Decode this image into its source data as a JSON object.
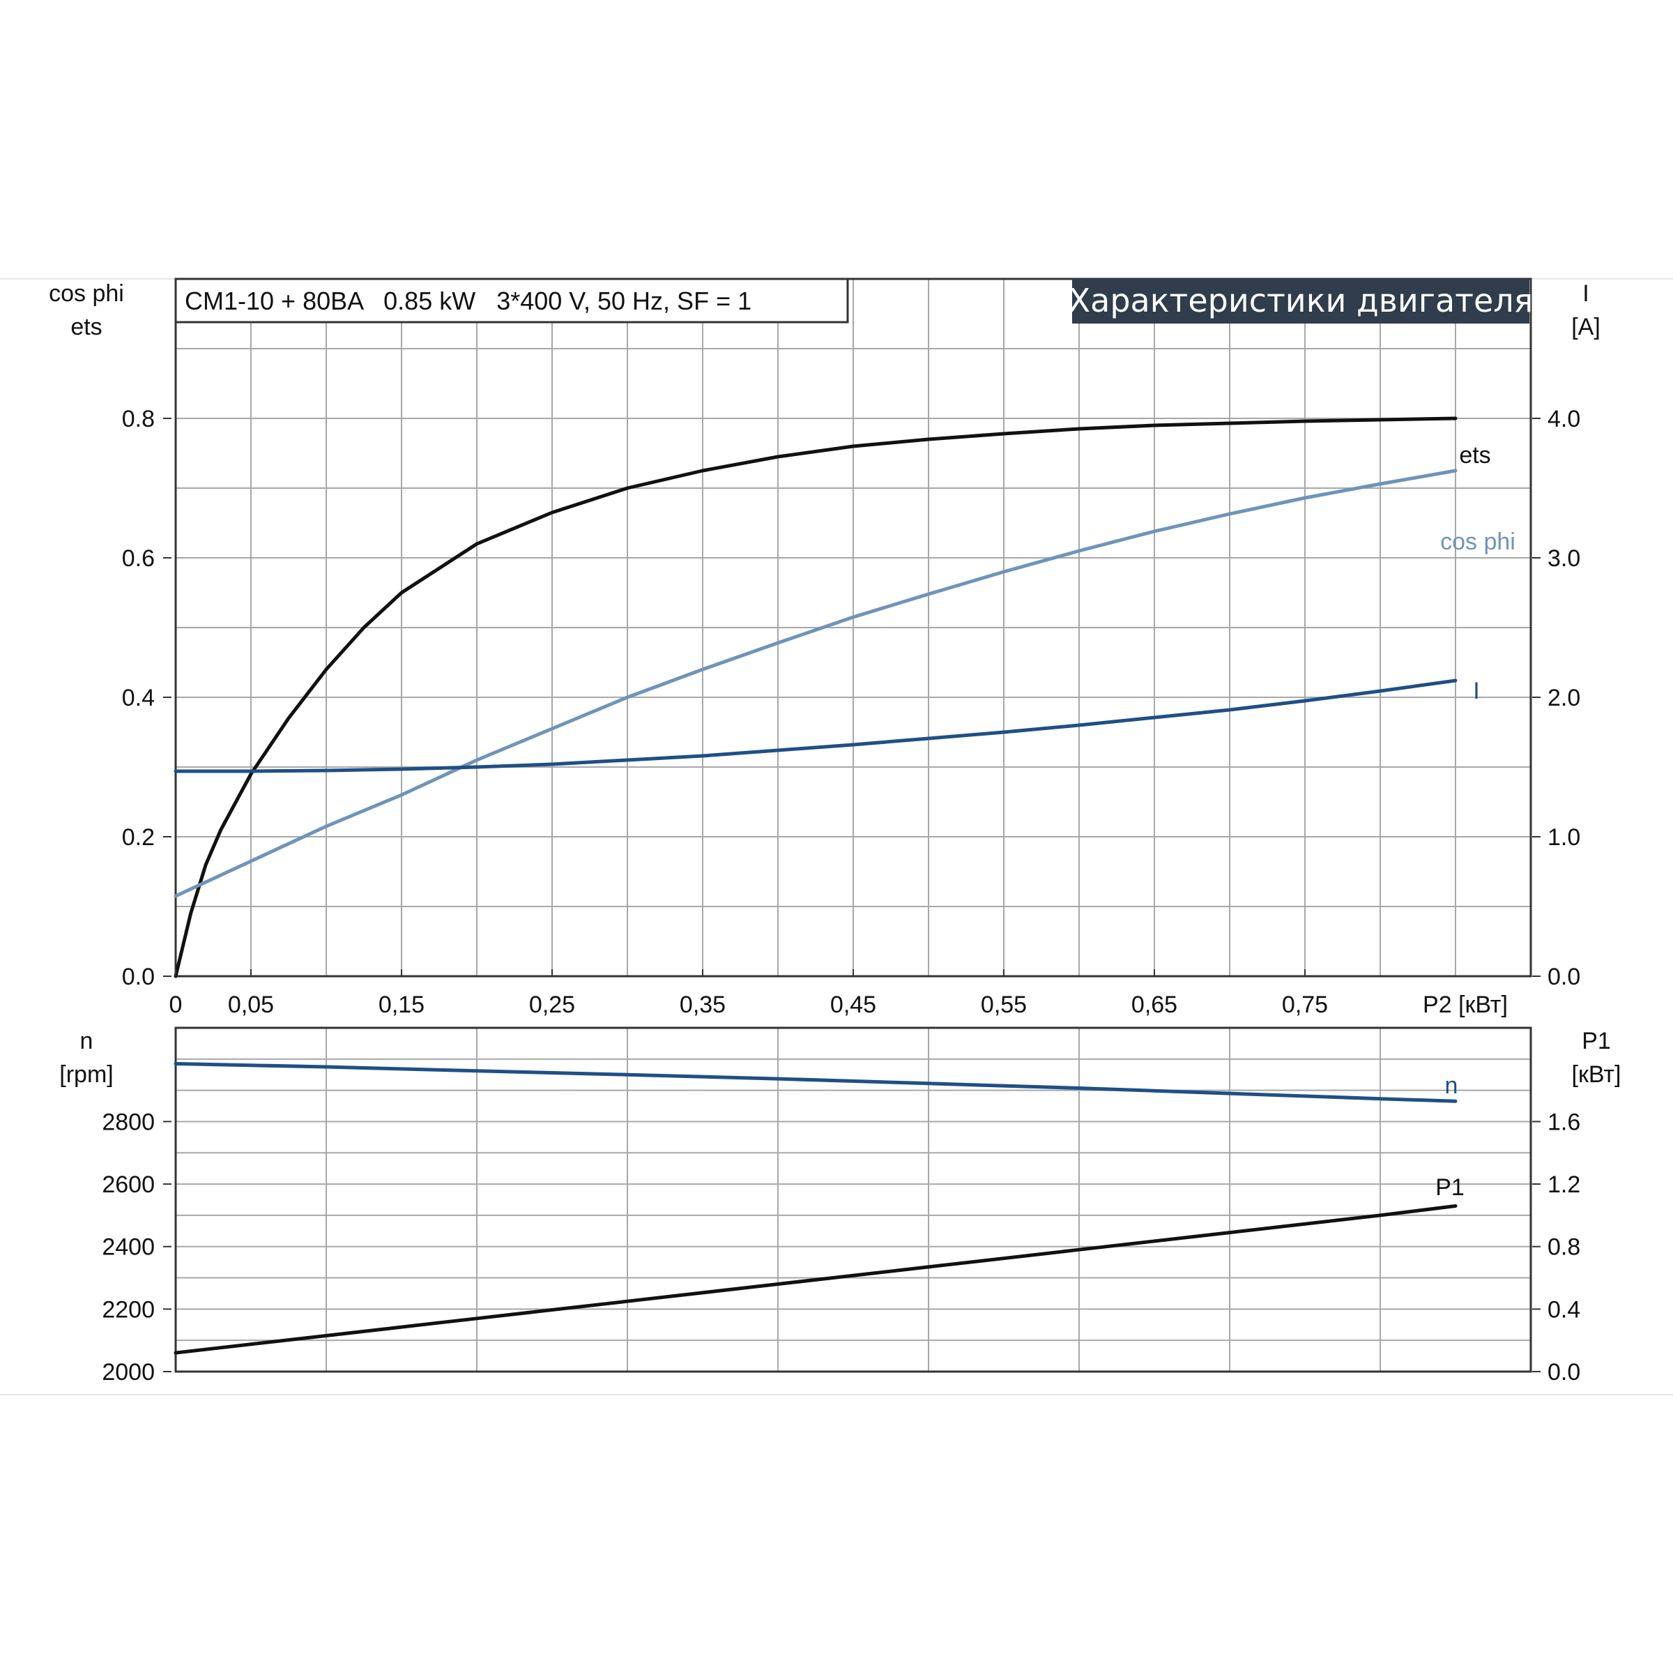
{
  "chart_data": [
    {
      "type": "line",
      "title": "Характеристики двигателя",
      "info": "CM1-10 + 80BA   0.85 kW   3*400 V, 50 Hz, SF = 1",
      "left_axis_title": [
        "cos phi",
        "ets"
      ],
      "right_axis_title": [
        "I",
        "[A]"
      ],
      "xlabel": "P2 [кВт]",
      "x_ticks": [
        "0",
        "0,05",
        "0,15",
        "0,25",
        "0,35",
        "0,45",
        "0,55",
        "0,65",
        "0,75"
      ],
      "y_ticks": [
        "0.0",
        "0.2",
        "0.4",
        "0.6",
        "0.8"
      ],
      "y2_ticks": [
        "0.0",
        "1.0",
        "2.0",
        "3.0",
        "4.0"
      ],
      "xlim": [
        0,
        0.9
      ],
      "ylim": [
        0,
        1.0
      ],
      "y2lim": [
        0,
        5.0
      ],
      "grid": true,
      "series": [
        {
          "name": "ets",
          "axis": "left",
          "color": "#111111",
          "x": [
            0,
            0.01,
            0.02,
            0.03,
            0.05,
            0.075,
            0.1,
            0.125,
            0.15,
            0.2,
            0.25,
            0.3,
            0.35,
            0.4,
            0.45,
            0.5,
            0.55,
            0.6,
            0.65,
            0.7,
            0.75,
            0.8,
            0.85
          ],
          "y": [
            0.0,
            0.09,
            0.16,
            0.21,
            0.29,
            0.37,
            0.44,
            0.5,
            0.55,
            0.62,
            0.665,
            0.7,
            0.725,
            0.745,
            0.76,
            0.77,
            0.778,
            0.785,
            0.79,
            0.793,
            0.796,
            0.798,
            0.8
          ]
        },
        {
          "name": "cos phi",
          "axis": "left",
          "color": "#6f94bb",
          "x": [
            0,
            0.05,
            0.1,
            0.15,
            0.2,
            0.25,
            0.3,
            0.35,
            0.4,
            0.45,
            0.5,
            0.55,
            0.6,
            0.65,
            0.7,
            0.75,
            0.8,
            0.85
          ],
          "y": [
            0.115,
            0.165,
            0.215,
            0.26,
            0.31,
            0.355,
            0.4,
            0.44,
            0.478,
            0.515,
            0.548,
            0.58,
            0.61,
            0.638,
            0.663,
            0.686,
            0.706,
            0.725
          ]
        },
        {
          "name": "I",
          "axis": "right",
          "color": "#1f4f86",
          "x": [
            0,
            0.05,
            0.1,
            0.15,
            0.2,
            0.25,
            0.3,
            0.35,
            0.4,
            0.45,
            0.5,
            0.55,
            0.6,
            0.65,
            0.7,
            0.75,
            0.8,
            0.85
          ],
          "y": [
            1.47,
            1.47,
            1.475,
            1.485,
            1.5,
            1.52,
            1.55,
            1.58,
            1.62,
            1.66,
            1.705,
            1.75,
            1.8,
            1.855,
            1.91,
            1.975,
            2.045,
            2.12
          ]
        }
      ]
    },
    {
      "type": "line",
      "left_axis_title": [
        "n",
        "[rpm]"
      ],
      "right_axis_title": [
        "P1",
        "[кВт]"
      ],
      "y_ticks": [
        "2000",
        "2200",
        "2400",
        "2600",
        "2800"
      ],
      "y2_ticks": [
        "0.0",
        "0.4",
        "0.8",
        "1.2",
        "1.6"
      ],
      "xlim": [
        0,
        0.9
      ],
      "ylim": [
        2000,
        3100
      ],
      "y2lim": [
        0,
        2.2
      ],
      "grid": true,
      "series": [
        {
          "name": "n",
          "axis": "left",
          "color": "#1f4f86",
          "x": [
            0,
            0.1,
            0.2,
            0.3,
            0.4,
            0.5,
            0.6,
            0.7,
            0.8,
            0.85
          ],
          "y": [
            2985,
            2975,
            2962,
            2950,
            2937,
            2922,
            2907,
            2890,
            2873,
            2865
          ]
        },
        {
          "name": "P1",
          "axis": "right",
          "color": "#111111",
          "x": [
            0,
            0.1,
            0.2,
            0.3,
            0.4,
            0.5,
            0.6,
            0.7,
            0.8,
            0.85
          ],
          "y": [
            0.12,
            0.23,
            0.34,
            0.45,
            0.56,
            0.67,
            0.78,
            0.89,
            1.0,
            1.06
          ]
        }
      ]
    }
  ],
  "colors": {
    "title_bg": "#2f3d4c",
    "grid": "#a8a8a8",
    "frame": "#333333"
  }
}
